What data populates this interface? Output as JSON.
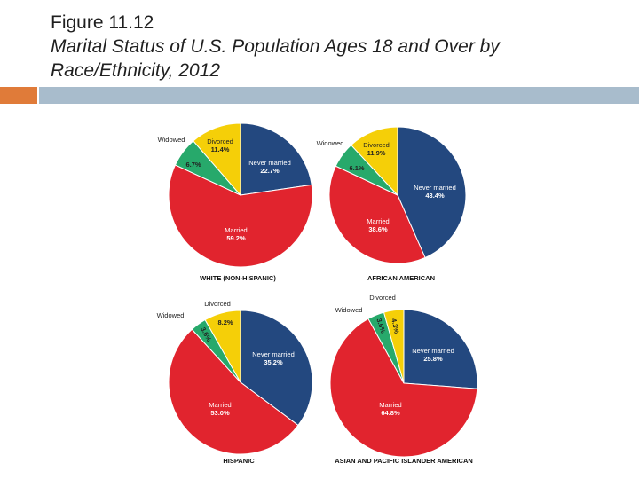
{
  "header": {
    "figure_number": "Figure 11.12",
    "title_line1": "Marital Status of U.S. Population Ages 18 and Over by",
    "title_line2": "Race/Ethnicity, 2012"
  },
  "colors": {
    "never_married": "#23487f",
    "married": "#e1242e",
    "widowed": "#27a96b",
    "divorced": "#f5cf08",
    "accent_orange": "#e07b39",
    "accent_blue": "#a8bccc"
  },
  "chart_data": [
    {
      "type": "pie",
      "title": "WHITE (NON-HISPANIC)",
      "slices": [
        {
          "label": "Never married",
          "value": 22.7,
          "display": "22.7%"
        },
        {
          "label": "Married",
          "value": 59.2,
          "display": "59.2%"
        },
        {
          "label": "Widowed",
          "value": 6.7,
          "display": "6.7%"
        },
        {
          "label": "Divorced",
          "value": 11.4,
          "display": "11.4%"
        }
      ]
    },
    {
      "type": "pie",
      "title": "AFRICAN AMERICAN",
      "slices": [
        {
          "label": "Never married",
          "value": 43.4,
          "display": "43.4%"
        },
        {
          "label": "Married",
          "value": 38.6,
          "display": "38.6%"
        },
        {
          "label": "Widowed",
          "value": 6.1,
          "display": "6.1%"
        },
        {
          "label": "Divorced",
          "value": 11.9,
          "display": "11.9%"
        }
      ]
    },
    {
      "type": "pie",
      "title": "HISPANIC",
      "slices": [
        {
          "label": "Never married",
          "value": 35.2,
          "display": "35.2%"
        },
        {
          "label": "Married",
          "value": 53.0,
          "display": "53.0%"
        },
        {
          "label": "Widowed",
          "value": 3.6,
          "display": "3.6%"
        },
        {
          "label": "Divorced",
          "value": 8.2,
          "display": "8.2%"
        }
      ]
    },
    {
      "type": "pie",
      "title": "ASIAN AND PACIFIC ISLANDER AMERICAN",
      "slices": [
        {
          "label": "Never married",
          "value": 25.8,
          "display": "25.8%"
        },
        {
          "label": "Married",
          "value": 64.8,
          "display": "64.8%"
        },
        {
          "label": "Widowed",
          "value": 3.6,
          "display": "3.6%"
        },
        {
          "label": "Divorced",
          "value": 4.3,
          "display": "4.3%"
        }
      ]
    }
  ]
}
